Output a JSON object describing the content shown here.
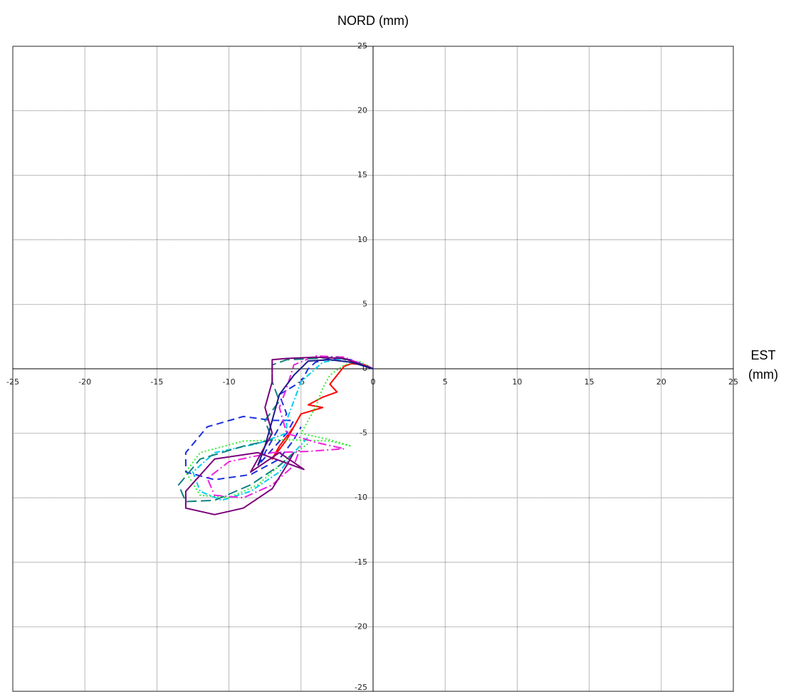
{
  "chart_data": {
    "type": "line",
    "title": "NORD (mm)",
    "x_label_lines": [
      "EST",
      "(mm)"
    ],
    "xlim": [
      -25,
      25
    ],
    "ylim": [
      -25,
      25
    ],
    "xticks": [
      -25,
      -20,
      -15,
      -10,
      -5,
      0,
      5,
      10,
      15,
      20,
      25
    ],
    "yticks": [
      25,
      20,
      15,
      10,
      5,
      0,
      -5,
      -10,
      -15,
      -20,
      -25
    ],
    "grid": true,
    "series": [
      {
        "color": "#ff0000",
        "dash": "none",
        "x": [
          0,
          -0.5,
          -1.5,
          -2,
          -2.5,
          -3,
          -2.5,
          -3.5,
          -4.5,
          -3.5,
          -5,
          -5.5,
          -6.5,
          -7,
          -6,
          -5.5
        ],
        "values": [
          0,
          0.3,
          0.4,
          0.2,
          -0.5,
          -1.2,
          -1.8,
          -2.2,
          -2.8,
          -3,
          -3.5,
          -4.5,
          -6,
          -7,
          -5.5,
          -4.5
        ]
      },
      {
        "color": "#33ee33",
        "dash": "2,3",
        "x": [
          0,
          -1,
          -2,
          -3,
          -3.5,
          -4,
          -4.5,
          -5,
          -3,
          -1.5,
          -3,
          -6,
          -9,
          -12,
          -13,
          -12,
          -10,
          -8,
          -6,
          -4.5
        ],
        "values": [
          0,
          0.6,
          0.3,
          -0.5,
          -1.5,
          -3,
          -4,
          -5,
          -5.5,
          -6,
          -5.6,
          -5.5,
          -5.6,
          -6.5,
          -8,
          -9.8,
          -10,
          -9,
          -7,
          -5.8
        ]
      },
      {
        "color": "#1a2fe0",
        "dash": "10,6",
        "x": [
          0,
          -1.5,
          -3,
          -4,
          -4.5,
          -5,
          -6.5,
          -6,
          -7,
          -8,
          -6,
          -5.5,
          -7,
          -9,
          -11.5,
          -13,
          -13,
          -11,
          -8.5,
          -6.5,
          -5.5,
          -5
        ],
        "values": [
          0,
          0.7,
          0.8,
          0.5,
          0,
          -1,
          -2,
          -3.5,
          -5.5,
          -7.5,
          -5,
          -4,
          -4,
          -3.7,
          -4.5,
          -6.5,
          -8,
          -8.6,
          -8.2,
          -7,
          -5.5,
          -4.5
        ]
      },
      {
        "color": "#00ccee",
        "dash": "8,3,2,3",
        "x": [
          0,
          -2,
          -3.5,
          -5,
          -5.5,
          -6,
          -6,
          -8,
          -11,
          -12.5,
          -12,
          -10.5,
          -8.5,
          -6.5,
          -5.5,
          -4.5
        ],
        "values": [
          0,
          0.8,
          0.5,
          -1,
          -2.5,
          -4,
          -5,
          -5.8,
          -6.5,
          -8,
          -9.5,
          -10.2,
          -9.5,
          -8,
          -6.5,
          -5.3
        ]
      },
      {
        "color": "#ee22dd",
        "dash": "12,4,2,4",
        "x": [
          0,
          -2,
          -4,
          -5.5,
          -6,
          -6.5,
          -6,
          -4,
          -2,
          -4.5,
          -7,
          -10,
          -11.5,
          -11,
          -9,
          -7,
          -5.5,
          -5
        ],
        "values": [
          0,
          0.9,
          1,
          0.3,
          -1.5,
          -3,
          -5,
          -5.7,
          -6.2,
          -6.4,
          -6.5,
          -7.2,
          -8.5,
          -9.8,
          -10,
          -9,
          -7.5,
          -6
        ]
      },
      {
        "color": "#108080",
        "dash": "14,6",
        "x": [
          0,
          -2.5,
          -4,
          -6,
          -7,
          -7,
          -6.5,
          -7.5,
          -7,
          -9,
          -12,
          -13.5,
          -13,
          -11,
          -8.5,
          -6.5,
          -5.5
        ],
        "values": [
          0,
          0.9,
          0.8,
          0.7,
          0.3,
          -1,
          -2.5,
          -4,
          -5.5,
          -6,
          -7,
          -9,
          -10.3,
          -10.2,
          -9,
          -7.5,
          -6.5
        ]
      },
      {
        "color": "#7a007a",
        "dash": "none",
        "x": [
          0,
          -2,
          -4,
          -6,
          -7,
          -7,
          -7.5,
          -7,
          -8.5,
          -6.5,
          -4.8,
          -8,
          -11,
          -13,
          -13,
          -11,
          -9,
          -7,
          -6,
          -5.5
        ],
        "values": [
          0,
          0.8,
          0.9,
          0.8,
          0.7,
          -1,
          -3,
          -5,
          -8,
          -6.5,
          -7.8,
          -6.5,
          -7,
          -9.5,
          -10.8,
          -11.3,
          -10.8,
          -9.3,
          -7.5,
          -6.5
        ]
      },
      {
        "color": "#1a1a8a",
        "dash": "none",
        "x": [
          0,
          -1.5,
          -3,
          -4.5,
          -5.5,
          -6.5,
          -7,
          -7.5,
          -8
        ],
        "values": [
          0,
          0.5,
          0.7,
          0.6,
          -0.5,
          -2,
          -4,
          -6,
          -7.5
        ]
      }
    ]
  }
}
